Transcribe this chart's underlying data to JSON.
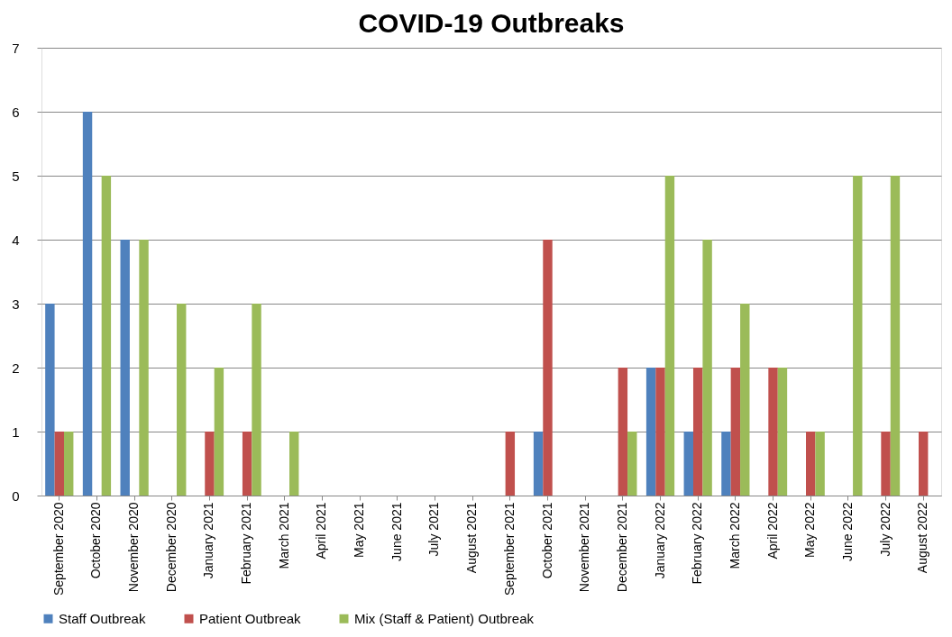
{
  "chart_data": {
    "type": "bar",
    "title": "COVID-19 Outbreaks",
    "categories": [
      "September 2020",
      "October 2020",
      "November 2020",
      "December 2020",
      "January 2021",
      "February 2021",
      "March 2021",
      "April 2021",
      "May 2021",
      "June 2021",
      "July 2021",
      "August 2021",
      "September 2021",
      "October 2021",
      "November 2021",
      "December 2021",
      "January 2022",
      "February 2022",
      "March 2022",
      "April 2022",
      "May 2022",
      "June 2022",
      "July 2022",
      "August 2022"
    ],
    "series": [
      {
        "name": "Staff Outbreak",
        "color": "#4f81bd",
        "values": [
          3,
          6,
          4,
          0,
          0,
          0,
          0,
          0,
          0,
          0,
          0,
          0,
          0,
          1,
          0,
          0,
          2,
          1,
          1,
          0,
          0,
          0,
          0,
          0
        ]
      },
      {
        "name": "Patient Outbreak",
        "color": "#c0504d",
        "values": [
          1,
          0,
          0,
          0,
          1,
          1,
          0,
          0,
          0,
          0,
          0,
          0,
          1,
          4,
          0,
          2,
          2,
          2,
          2,
          2,
          1,
          0,
          1,
          1
        ]
      },
      {
        "name": "Mix (Staff & Patient) Outbreak",
        "color": "#9bbb59",
        "values": [
          1,
          5,
          4,
          3,
          2,
          3,
          1,
          0,
          0,
          0,
          0,
          0,
          0,
          0,
          0,
          1,
          5,
          4,
          3,
          2,
          1,
          5,
          5,
          0
        ]
      }
    ],
    "ylim": [
      0,
      7
    ],
    "yticks": [
      0,
      1,
      2,
      3,
      4,
      5,
      6,
      7
    ],
    "grid": "y",
    "legend": "bottom"
  }
}
